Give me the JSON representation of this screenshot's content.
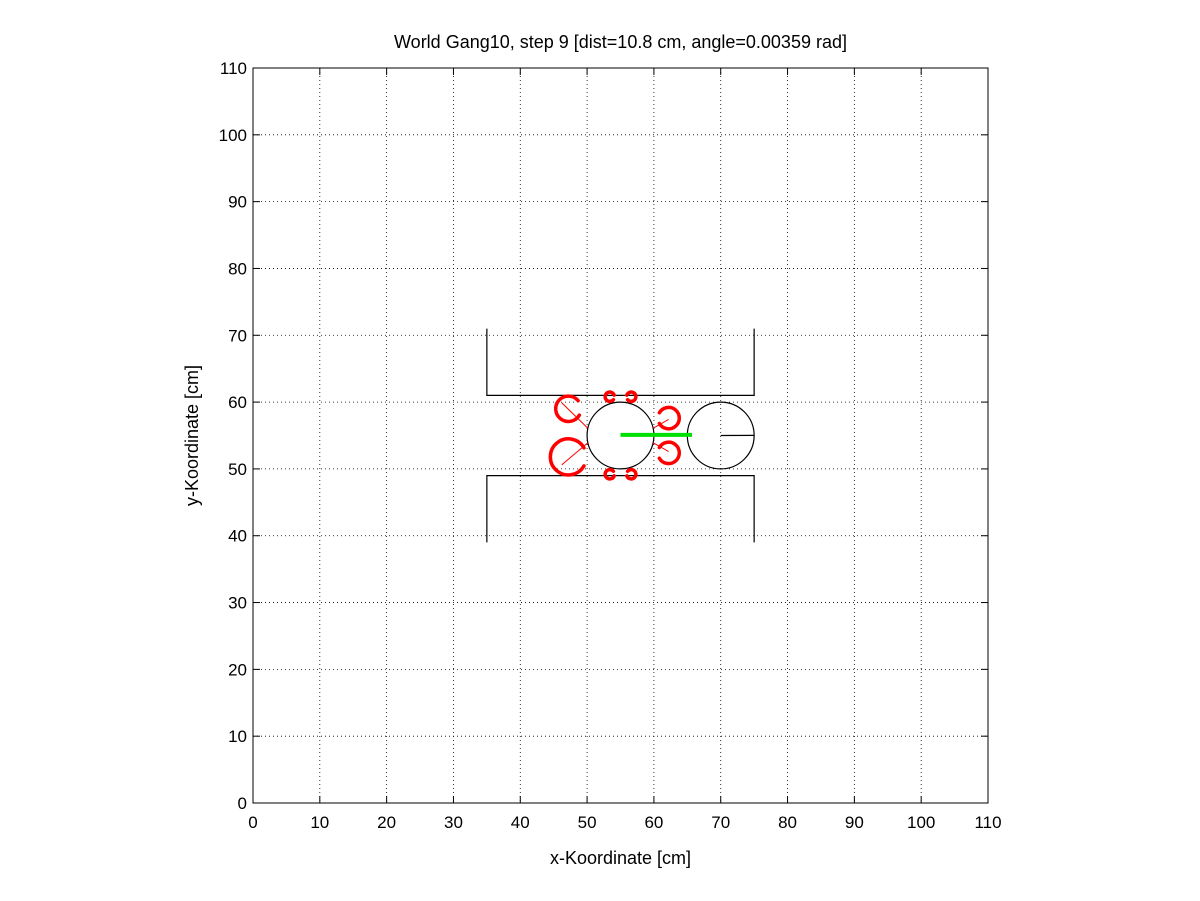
{
  "chart_data": {
    "type": "scatter",
    "title": "World Gang10, step 9 [dist=10.8 cm, angle=0.00359 rad]",
    "xlabel": "x-Koordinate [cm]",
    "ylabel": "y-Koordinate [cm]",
    "xlim": [
      0,
      110
    ],
    "ylim": [
      0,
      110
    ],
    "xticks": [
      0,
      10,
      20,
      30,
      40,
      50,
      60,
      70,
      80,
      90,
      100,
      110
    ],
    "yticks": [
      0,
      10,
      20,
      30,
      40,
      50,
      60,
      70,
      80,
      90,
      100,
      110
    ],
    "xtick_labels": [
      "0",
      "10",
      "20",
      "30",
      "40",
      "50",
      "60",
      "70",
      "80",
      "90",
      "100",
      "110"
    ],
    "ytick_labels": [
      "0",
      "10",
      "20",
      "30",
      "40",
      "50",
      "60",
      "70",
      "80",
      "90",
      "100",
      "110"
    ],
    "grid": true,
    "grid_style": "dotted",
    "legend": "none",
    "colors": {
      "walls": "#000000",
      "robots": "#000000",
      "sensor_beams": "#ff0000",
      "sensor_arcs": "#ff0000",
      "connection": "#00e000",
      "grid": "#000000"
    },
    "walls": [
      {
        "name": "upper-wall",
        "points": [
          [
            35,
            71
          ],
          [
            35,
            61
          ],
          [
            75,
            61
          ],
          [
            75,
            71
          ]
        ]
      },
      {
        "name": "lower-wall",
        "points": [
          [
            35,
            39
          ],
          [
            35,
            49
          ],
          [
            75,
            49
          ],
          [
            75,
            39
          ]
        ]
      }
    ],
    "robots": [
      {
        "name": "robot-1",
        "center": [
          55,
          55
        ],
        "radius": 5,
        "heading": 0.0
      },
      {
        "name": "robot-2",
        "center": [
          70,
          55
        ],
        "radius": 5,
        "heading": 0.0036
      }
    ],
    "sensor_beams": [
      {
        "name": "beam-left-upper",
        "from": [
          50.1,
          56.1
        ],
        "to": [
          46.2,
          59.9
        ]
      },
      {
        "name": "beam-left-lower",
        "from": [
          50.1,
          53.9
        ],
        "to": [
          46.2,
          50.6
        ]
      },
      {
        "name": "beam-right-upper",
        "from": [
          59.9,
          56.1
        ],
        "to": [
          62.2,
          57.4
        ]
      },
      {
        "name": "beam-right-lower",
        "from": [
          59.9,
          53.9
        ],
        "to": [
          62.2,
          52.6
        ]
      }
    ],
    "sensor_arcs": [
      {
        "name": "arc-left-upper",
        "center": [
          47.2,
          59.0
        ],
        "radius": 1.9,
        "start_deg": 40,
        "end_deg": 330
      },
      {
        "name": "arc-left-lower",
        "center": [
          47.2,
          51.8
        ],
        "radius": 2.7,
        "start_deg": 30,
        "end_deg": 330
      },
      {
        "name": "arc-right-upper",
        "center": [
          62.2,
          57.6
        ],
        "radius": 1.6,
        "start_deg": -150,
        "end_deg": 150
      },
      {
        "name": "arc-right-lower",
        "center": [
          62.2,
          52.4
        ],
        "radius": 1.6,
        "start_deg": -150,
        "end_deg": 150
      },
      {
        "name": "arc-top-left",
        "center": [
          53.4,
          60.8
        ],
        "radius": 0.7,
        "start_deg": 20,
        "end_deg": 320
      },
      {
        "name": "arc-top-right",
        "center": [
          56.6,
          60.8
        ],
        "radius": 0.7,
        "start_deg": -140,
        "end_deg": 160
      },
      {
        "name": "arc-bottom-left",
        "center": [
          53.4,
          49.2
        ],
        "radius": 0.7,
        "start_deg": 40,
        "end_deg": 340
      },
      {
        "name": "arc-bottom-right",
        "center": [
          56.6,
          49.2
        ],
        "radius": 0.7,
        "start_deg": -160,
        "end_deg": 140
      }
    ],
    "connection": {
      "name": "robot-link",
      "from": [
        55,
        55.1
      ],
      "to": [
        65.7,
        55.1
      ]
    }
  }
}
